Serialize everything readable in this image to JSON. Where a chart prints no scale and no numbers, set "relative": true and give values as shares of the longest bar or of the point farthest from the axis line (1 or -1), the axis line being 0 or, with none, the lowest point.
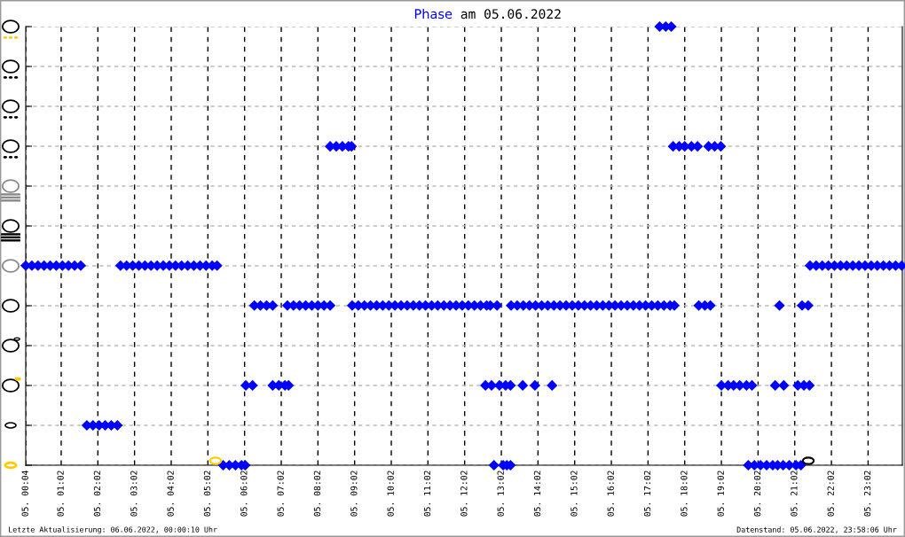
{
  "chart_data": {
    "type": "scatter",
    "title": "Phase am 05.06.2022",
    "annotations": [
      "Letzte Aktualisierung: 06.06.2022, 00:00:10 Uhr",
      "Datenstand: 05.06.2022, 23:58:06 Uhr"
    ],
    "xlim": [
      "2022-06-05T00:04",
      "2022-06-05T23:58"
    ],
    "relative": true,
    "xticks": [
      {
        "value": "2022-06-05T00:04",
        "label": "05. 00:04"
      },
      {
        "value": "2022-06-05T01:02",
        "label": "05. 01:02"
      },
      {
        "value": "2022-06-05T02:02",
        "label": "05. 02:02"
      },
      {
        "value": "2022-06-05T03:02",
        "label": "05. 03:02"
      },
      {
        "value": "2022-06-05T04:02",
        "label": "05. 04:02"
      },
      {
        "value": "2022-06-05T05:02",
        "label": "05. 05:02"
      },
      {
        "value": "2022-06-05T06:02",
        "label": "05. 06:02"
      },
      {
        "value": "2022-06-05T07:02",
        "label": "05. 07:02"
      },
      {
        "value": "2022-06-05T08:02",
        "label": "05. 08:02"
      },
      {
        "value": "2022-06-05T09:02",
        "label": "05. 09:02"
      },
      {
        "value": "2022-06-05T10:02",
        "label": "05. 10:02"
      },
      {
        "value": "2022-06-05T11:02",
        "label": "05. 11:02"
      },
      {
        "value": "2022-06-05T12:02",
        "label": "05. 12:02"
      },
      {
        "value": "2022-06-05T13:02",
        "label": "05. 13:02"
      },
      {
        "value": "2022-06-05T14:02",
        "label": "05. 14:02"
      },
      {
        "value": "2022-06-05T15:02",
        "label": "05. 15:02"
      },
      {
        "value": "2022-06-05T16:02",
        "label": "05. 16:02"
      },
      {
        "value": "2022-06-05T17:02",
        "label": "05. 17:02"
      },
      {
        "value": "2022-06-05T18:02",
        "label": "05. 18:02"
      },
      {
        "value": "2022-06-05T19:02",
        "label": "05. 19:02"
      },
      {
        "value": "2022-06-05T20:02",
        "label": "05. 20:02"
      },
      {
        "value": "2022-06-05T21:02",
        "label": "05. 21:02"
      },
      {
        "value": "2022-06-05T22:02",
        "label": "05. 22:02"
      },
      {
        "value": "2022-06-05T23:02",
        "label": "05. 23:02"
      }
    ],
    "grid": true,
    "marker": "diamond",
    "series": [
      {
        "color": "#0000ff",
        "x": [
          "2022-06-05T00:04",
          "2022-06-05T00:14",
          "2022-06-05T00:24",
          "2022-06-05T00:34",
          "2022-06-05T00:44",
          "2022-06-05T00:54",
          "2022-06-05T01:04",
          "2022-06-05T01:14",
          "2022-06-05T01:24",
          "2022-06-05T01:34",
          "2022-06-05T01:44",
          "2022-06-05T01:54",
          "2022-06-05T02:04",
          "2022-06-05T02:14",
          "2022-06-05T02:24",
          "2022-06-05T02:34",
          "2022-06-05T02:39",
          "2022-06-05T02:49",
          "2022-06-05T02:59",
          "2022-06-05T03:09",
          "2022-06-05T03:19",
          "2022-06-05T03:29",
          "2022-06-05T03:39",
          "2022-06-05T03:49",
          "2022-06-05T03:59",
          "2022-06-05T04:09",
          "2022-06-05T04:19",
          "2022-06-05T04:29",
          "2022-06-05T04:39",
          "2022-06-05T04:49",
          "2022-06-05T04:59",
          "2022-06-05T05:09",
          "2022-06-05T05:17",
          "2022-06-05T05:27",
          "2022-06-05T05:37",
          "2022-06-05T05:47",
          "2022-06-05T05:57",
          "2022-06-05T06:03",
          "2022-06-05T06:04",
          "2022-06-05T06:15",
          "2022-06-05T06:18",
          "2022-06-05T06:28",
          "2022-06-05T06:38",
          "2022-06-05T06:48",
          "2022-06-05T06:48",
          "2022-06-05T06:58",
          "2022-06-05T07:08",
          "2022-06-05T07:14",
          "2022-06-05T07:12",
          "2022-06-05T07:22",
          "2022-06-05T07:32",
          "2022-06-05T07:42",
          "2022-06-05T07:52",
          "2022-06-05T08:02",
          "2022-06-05T08:12",
          "2022-06-05T08:22",
          "2022-06-05T08:22",
          "2022-06-05T08:32",
          "2022-06-05T08:42",
          "2022-06-05T08:52",
          "2022-06-05T08:57",
          "2022-06-05T08:58",
          "2022-06-05T09:08",
          "2022-06-05T09:18",
          "2022-06-05T09:28",
          "2022-06-05T09:38",
          "2022-06-05T09:48",
          "2022-06-05T09:58",
          "2022-06-05T10:08",
          "2022-06-05T10:18",
          "2022-06-05T10:28",
          "2022-06-05T10:38",
          "2022-06-05T10:48",
          "2022-06-05T10:58",
          "2022-06-05T11:08",
          "2022-06-05T11:18",
          "2022-06-05T11:28",
          "2022-06-05T11:38",
          "2022-06-05T11:48",
          "2022-06-05T11:58",
          "2022-06-05T12:08",
          "2022-06-05T12:18",
          "2022-06-05T12:28",
          "2022-06-05T12:38",
          "2022-06-05T12:44",
          "2022-06-05T12:55",
          "2022-06-05T13:18",
          "2022-06-05T13:28",
          "2022-06-05T13:38",
          "2022-06-05T13:48",
          "2022-06-05T13:58",
          "2022-06-05T14:08",
          "2022-06-05T14:18",
          "2022-06-05T14:28",
          "2022-06-05T14:38",
          "2022-06-05T14:48",
          "2022-06-05T14:58",
          "2022-06-05T15:08",
          "2022-06-05T15:18",
          "2022-06-05T15:28",
          "2022-06-05T15:38",
          "2022-06-05T15:48",
          "2022-06-05T15:58",
          "2022-06-05T16:08",
          "2022-06-05T16:18",
          "2022-06-05T16:28",
          "2022-06-05T16:38",
          "2022-06-05T16:48",
          "2022-06-05T16:58",
          "2022-06-05T17:08",
          "2022-06-05T17:18",
          "2022-06-05T17:28",
          "2022-06-05T17:38",
          "2022-06-05T17:45",
          "2022-06-05T12:36",
          "2022-06-05T12:46",
          "2022-06-05T12:59",
          "2022-06-05T13:09",
          "2022-06-05T13:17",
          "2022-06-05T13:37",
          "2022-06-05T13:57",
          "2022-06-05T14:25",
          "2022-06-05T12:50",
          "2022-06-05T13:05",
          "2022-06-05T13:11",
          "2022-06-05T13:17",
          "2022-06-05T17:21",
          "2022-06-05T17:31",
          "2022-06-05T17:40",
          "2022-06-05T17:43",
          "2022-06-05T17:53",
          "2022-06-05T18:02",
          "2022-06-05T18:13",
          "2022-06-05T18:23",
          "2022-06-05T18:41",
          "2022-06-05T18:51",
          "2022-06-05T19:01",
          "2022-06-05T18:25",
          "2022-06-05T18:35",
          "2022-06-05T18:44",
          "2022-06-05T20:37",
          "2022-06-05T21:14",
          "2022-06-05T21:24",
          "2022-06-05T19:02",
          "2022-06-05T19:13",
          "2022-06-05T19:22",
          "2022-06-05T19:32",
          "2022-06-05T19:43",
          "2022-06-05T19:52",
          "2022-06-05T20:30",
          "2022-06-05T20:44",
          "2022-06-05T21:07",
          "2022-06-05T21:17",
          "2022-06-05T21:26",
          "2022-06-05T19:46",
          "2022-06-05T19:56",
          "2022-06-05T20:06",
          "2022-06-05T20:16",
          "2022-06-05T20:26",
          "2022-06-05T20:34",
          "2022-06-05T20:43",
          "2022-06-05T20:53",
          "2022-06-05T21:04",
          "2022-06-05T21:12",
          "2022-06-05T21:27",
          "2022-06-05T21:37",
          "2022-06-05T21:47",
          "2022-06-05T21:57",
          "2022-06-05T22:07",
          "2022-06-05T22:17",
          "2022-06-05T22:27",
          "2022-06-05T22:37",
          "2022-06-05T22:47",
          "2022-06-05T22:57",
          "2022-06-05T23:07",
          "2022-06-05T23:17",
          "2022-06-05T23:27",
          "2022-06-05T23:37",
          "2022-06-05T23:47",
          "2022-06-05T23:57"
        ],
        "values": [
          0.455,
          0.455,
          0.455,
          0.455,
          0.455,
          0.455,
          0.455,
          0.455,
          0.455,
          0.455,
          0.091,
          0.091,
          0.091,
          0.091,
          0.091,
          0.091,
          0.455,
          0.455,
          0.455,
          0.455,
          0.455,
          0.455,
          0.455,
          0.455,
          0.455,
          0.455,
          0.455,
          0.455,
          0.455,
          0.455,
          0.455,
          0.455,
          0.455,
          0,
          0,
          0,
          0,
          0,
          0.182,
          0.182,
          0.364,
          0.364,
          0.364,
          0.364,
          0.182,
          0.182,
          0.182,
          0.182,
          0.364,
          0.364,
          0.364,
          0.364,
          0.364,
          0.364,
          0.364,
          0.364,
          0.727,
          0.727,
          0.727,
          0.727,
          0.727,
          0.364,
          0.364,
          0.364,
          0.364,
          0.364,
          0.364,
          0.364,
          0.364,
          0.364,
          0.364,
          0.364,
          0.364,
          0.364,
          0.364,
          0.364,
          0.364,
          0.364,
          0.364,
          0.364,
          0.364,
          0.364,
          0.364,
          0.364,
          0.364,
          0.364,
          0.364,
          0.364,
          0.364,
          0.364,
          0.364,
          0.364,
          0.364,
          0.364,
          0.364,
          0.364,
          0.364,
          0.364,
          0.364,
          0.364,
          0.364,
          0.364,
          0.364,
          0.364,
          0.364,
          0.364,
          0.364,
          0.364,
          0.364,
          0.364,
          0.364,
          0.364,
          0.364,
          0.364,
          0.182,
          0.182,
          0.182,
          0.182,
          0.182,
          0.182,
          0.182,
          0.182,
          0,
          0,
          0,
          0,
          1,
          1,
          1,
          0.727,
          0.727,
          0.727,
          0.727,
          0.727,
          0.727,
          0.727,
          0.727,
          0.364,
          0.364,
          0.364,
          0.364,
          0.364,
          0.364,
          0.182,
          0.182,
          0.182,
          0.182,
          0.182,
          0.182,
          0.182,
          0.182,
          0.182,
          0.182,
          0.182,
          0,
          0,
          0,
          0,
          0,
          0,
          0,
          0,
          0,
          0,
          0.455,
          0.455,
          0.455,
          0.455,
          0.455,
          0.455,
          0.455,
          0.455,
          0.455,
          0.455,
          0.455,
          0.455,
          0.455,
          0.455,
          0.455,
          0.455
        ]
      }
    ]
  }
}
